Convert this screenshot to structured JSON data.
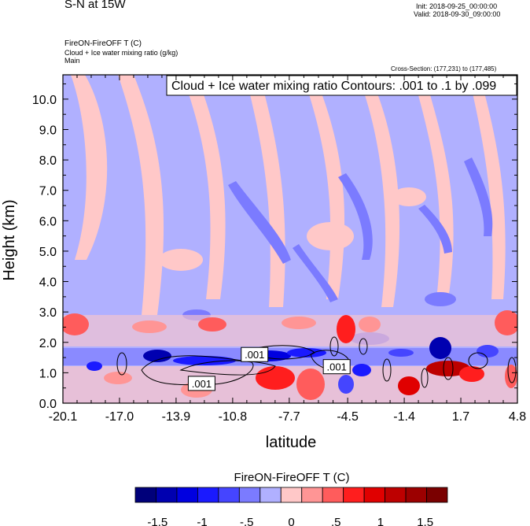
{
  "header": {
    "main_title": "S-N at 15W",
    "init": "Init: 2018-09-25_00:00:00",
    "valid": "Valid: 2018-09-30_09:00:00",
    "field1": "FireON-FireOFF T   (C)",
    "field2": "Cloud + Ice water mixing ratio   (g/kg)",
    "field3": "Main",
    "cross_section": "Cross-Section: (177,231) to (177,485)"
  },
  "chart_data": {
    "type": "heatmap",
    "title": "S-N at 15W",
    "contour_info": "Cloud + Ice water mixing ratio Contours: .001 to .1 by .099",
    "xlabel": "latitude",
    "ylabel": "Height (km)",
    "xlim": [
      -20.1,
      4.8
    ],
    "ylim": [
      0.0,
      10.8
    ],
    "x_ticks": [
      "-20.1",
      "-17.0",
      "-13.9",
      "-10.8",
      "-7.7",
      "-4.5",
      "-1.4",
      "1.7",
      "4.8"
    ],
    "x_tick_values": [
      -20.1,
      -17.0,
      -13.9,
      -10.8,
      -7.7,
      -4.5,
      -1.4,
      1.7,
      4.8
    ],
    "y_ticks": [
      "0.0",
      "1.0",
      "2.0",
      "3.0",
      "4.0",
      "5.0",
      "6.0",
      "7.0",
      "8.0",
      "9.0",
      "10.0"
    ],
    "y_tick_values": [
      0,
      1,
      2,
      3,
      4,
      5,
      6,
      7,
      8,
      9,
      10
    ],
    "contour_labels": [
      {
        "text": ".001",
        "lat": -9.6,
        "z": 1.6
      },
      {
        "text": ".001",
        "lat": -5.1,
        "z": 1.2
      },
      {
        "text": ".001",
        "lat": -12.5,
        "z": 0.65
      }
    ],
    "colorbar": {
      "title": "FireON-FireOFF T  (C)",
      "levels": [
        -1.75,
        -1.5,
        -1.25,
        -1.0,
        -0.75,
        -0.5,
        -0.25,
        0,
        0.25,
        0.5,
        0.75,
        1.0,
        1.25,
        1.5,
        1.75
      ],
      "tick_labels": [
        "-1.5",
        "-1",
        "-.5",
        "0",
        ".5",
        "1",
        "1.5"
      ],
      "tick_values": [
        -1.5,
        -1.0,
        -0.5,
        0,
        0.5,
        1.0,
        1.5
      ],
      "colors": [
        "#00007a",
        "#0000b0",
        "#0000e0",
        "#1a1aff",
        "#4545ff",
        "#7b7bff",
        "#b0b0ff",
        "#ffc8c8",
        "#ff9595",
        "#ff5c5c",
        "#ff1e1e",
        "#e00000",
        "#bd0000",
        "#9c0000",
        "#7a0000"
      ]
    }
  }
}
